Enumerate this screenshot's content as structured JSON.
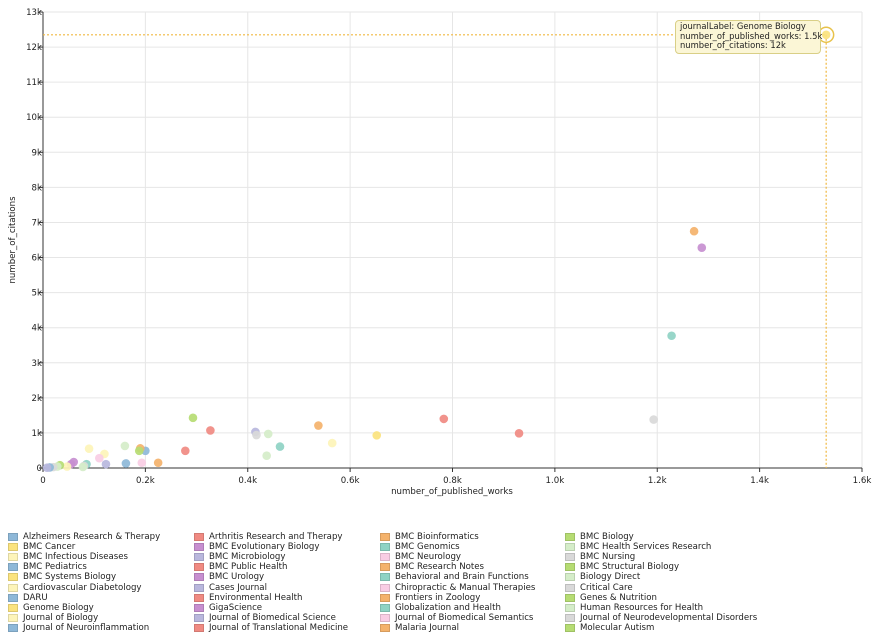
{
  "chart_data": {
    "type": "scatter",
    "xlabel": "number_of_published_works",
    "ylabel": "number_of_citations",
    "xlim": [
      0,
      1600
    ],
    "ylim": [
      0,
      13000
    ],
    "x_ticks": [
      "0",
      "0.2k",
      "0.4k",
      "0.6k",
      "0.8k",
      "1.0k",
      "1.2k",
      "1.4k",
      "1.6k"
    ],
    "y_ticks": [
      "0",
      "1k",
      "2k",
      "3k",
      "4k",
      "5k",
      "6k",
      "7k",
      "8k",
      "9k",
      "10k",
      "11k",
      "12k",
      "13k"
    ],
    "grid": true,
    "points": [
      {
        "x": 1530,
        "y": 12350,
        "color": "#fbe37e",
        "highlighted": true
      },
      {
        "x": 1272,
        "y": 6750,
        "color": "#f4b26b"
      },
      {
        "x": 1287,
        "y": 6280,
        "color": "#c78fd0"
      },
      {
        "x": 1228,
        "y": 3770,
        "color": "#8fd3c4"
      },
      {
        "x": 1193,
        "y": 1380,
        "color": "#d9d9d9"
      },
      {
        "x": 783,
        "y": 1400,
        "color": "#f08a82"
      },
      {
        "x": 930,
        "y": 990,
        "color": "#f08a82"
      },
      {
        "x": 652,
        "y": 930,
        "color": "#fbe37e"
      },
      {
        "x": 565,
        "y": 710,
        "color": "#fdf4b9"
      },
      {
        "x": 538,
        "y": 1210,
        "color": "#f4b26b"
      },
      {
        "x": 463,
        "y": 610,
        "color": "#8fd3c4"
      },
      {
        "x": 440,
        "y": 970,
        "color": "#d5edc9"
      },
      {
        "x": 437,
        "y": 350,
        "color": "#d5edc9"
      },
      {
        "x": 415,
        "y": 1030,
        "color": "#b9b7dd"
      },
      {
        "x": 417,
        "y": 940,
        "color": "#d9d9d9"
      },
      {
        "x": 327,
        "y": 1070,
        "color": "#f08a82"
      },
      {
        "x": 293,
        "y": 1430,
        "color": "#b6dc73"
      },
      {
        "x": 278,
        "y": 490,
        "color": "#f08a82"
      },
      {
        "x": 225,
        "y": 150,
        "color": "#f4b26b"
      },
      {
        "x": 200,
        "y": 490,
        "color": "#8eb8d8"
      },
      {
        "x": 190,
        "y": 560,
        "color": "#f4b26b"
      },
      {
        "x": 188,
        "y": 490,
        "color": "#b6dc73"
      },
      {
        "x": 193,
        "y": 150,
        "color": "#f9cde4"
      },
      {
        "x": 160,
        "y": 630,
        "color": "#d5edc9"
      },
      {
        "x": 162,
        "y": 130,
        "color": "#8eb8d8"
      },
      {
        "x": 120,
        "y": 400,
        "color": "#fdf4b9"
      },
      {
        "x": 123,
        "y": 110,
        "color": "#b9b7dd"
      },
      {
        "x": 110,
        "y": 280,
        "color": "#f9cde4"
      },
      {
        "x": 90,
        "y": 550,
        "color": "#fdf4b9"
      },
      {
        "x": 85,
        "y": 110,
        "color": "#8fd3c4"
      },
      {
        "x": 80,
        "y": 60,
        "color": "#d9d9d9"
      },
      {
        "x": 78,
        "y": 30,
        "color": "#d5edc9"
      },
      {
        "x": 60,
        "y": 170,
        "color": "#c78fd0"
      },
      {
        "x": 55,
        "y": 110,
        "color": "#c78fd0"
      },
      {
        "x": 47,
        "y": 40,
        "color": "#fdf4b9"
      },
      {
        "x": 33,
        "y": 80,
        "color": "#b6dc73"
      },
      {
        "x": 28,
        "y": 40,
        "color": "#d5edc9"
      },
      {
        "x": 20,
        "y": 25,
        "color": "#d9d9d9"
      },
      {
        "x": 13,
        "y": 15,
        "color": "#8eb8d8"
      },
      {
        "x": 8,
        "y": 10,
        "color": "#b9b7dd"
      }
    ],
    "tooltip": {
      "line1": "journalLabel: Genome Biology",
      "line2": "number_of_published_works: 1.5k",
      "line3": "number_of_citations: 12k"
    },
    "legend": [
      {
        "label": "Alzheimers Research & Therapy",
        "color": "#8eb8d8"
      },
      {
        "label": "BMC Cancer",
        "color": "#fbe37e"
      },
      {
        "label": "BMC Infectious Diseases",
        "color": "#fdf4b9"
      },
      {
        "label": "BMC Pediatrics",
        "color": "#8eb8d8"
      },
      {
        "label": "BMC Systems Biology",
        "color": "#fbe37e"
      },
      {
        "label": "Cardiovascular Diabetology",
        "color": "#fdf4b9"
      },
      {
        "label": "DARU",
        "color": "#8eb8d8"
      },
      {
        "label": "Genome Biology",
        "color": "#fbe37e"
      },
      {
        "label": "Journal of Biology",
        "color": "#fdf4b9"
      },
      {
        "label": "Journal of Neuroinflammation",
        "color": "#8eb8d8"
      },
      {
        "label": "Arthritis Research and Therapy",
        "color": "#f08a82"
      },
      {
        "label": "BMC Evolutionary Biology",
        "color": "#c78fd0"
      },
      {
        "label": "BMC Microbiology",
        "color": "#b9b7dd"
      },
      {
        "label": "BMC Public Health",
        "color": "#f08a82"
      },
      {
        "label": "BMC Urology",
        "color": "#c78fd0"
      },
      {
        "label": "Cases Journal",
        "color": "#b9b7dd"
      },
      {
        "label": "Environmental Health",
        "color": "#f08a82"
      },
      {
        "label": "GigaScience",
        "color": "#c78fd0"
      },
      {
        "label": "Journal of Biomedical Science",
        "color": "#b9b7dd"
      },
      {
        "label": "Journal of Translational Medicine",
        "color": "#f08a82"
      },
      {
        "label": "BMC Bioinformatics",
        "color": "#f4b26b"
      },
      {
        "label": "BMC Genomics",
        "color": "#8fd3c4"
      },
      {
        "label": "BMC Neurology",
        "color": "#f9cde4"
      },
      {
        "label": "BMC Research Notes",
        "color": "#f4b26b"
      },
      {
        "label": "Behavioral and Brain Functions",
        "color": "#8fd3c4"
      },
      {
        "label": "Chiropractic & Manual Therapies",
        "color": "#f9cde4"
      },
      {
        "label": "Frontiers in Zoology",
        "color": "#f4b26b"
      },
      {
        "label": "Globalization and Health",
        "color": "#8fd3c4"
      },
      {
        "label": "Journal of Biomedical Semantics",
        "color": "#f9cde4"
      },
      {
        "label": "Malaria Journal",
        "color": "#f4b26b"
      },
      {
        "label": "BMC Biology",
        "color": "#b6dc73"
      },
      {
        "label": "BMC Health Services Research",
        "color": "#d5edc9"
      },
      {
        "label": "BMC Nursing",
        "color": "#d9d9d9"
      },
      {
        "label": "BMC Structural Biology",
        "color": "#b6dc73"
      },
      {
        "label": "Biology Direct",
        "color": "#d5edc9"
      },
      {
        "label": "Critical Care",
        "color": "#d9d9d9"
      },
      {
        "label": "Genes & Nutrition",
        "color": "#b6dc73"
      },
      {
        "label": "Human Resources for Health",
        "color": "#d5edc9"
      },
      {
        "label": "Journal of Neurodevelopmental Disorders",
        "color": "#d9d9d9"
      },
      {
        "label": "Molecular Autism",
        "color": "#b6dc73"
      }
    ]
  }
}
